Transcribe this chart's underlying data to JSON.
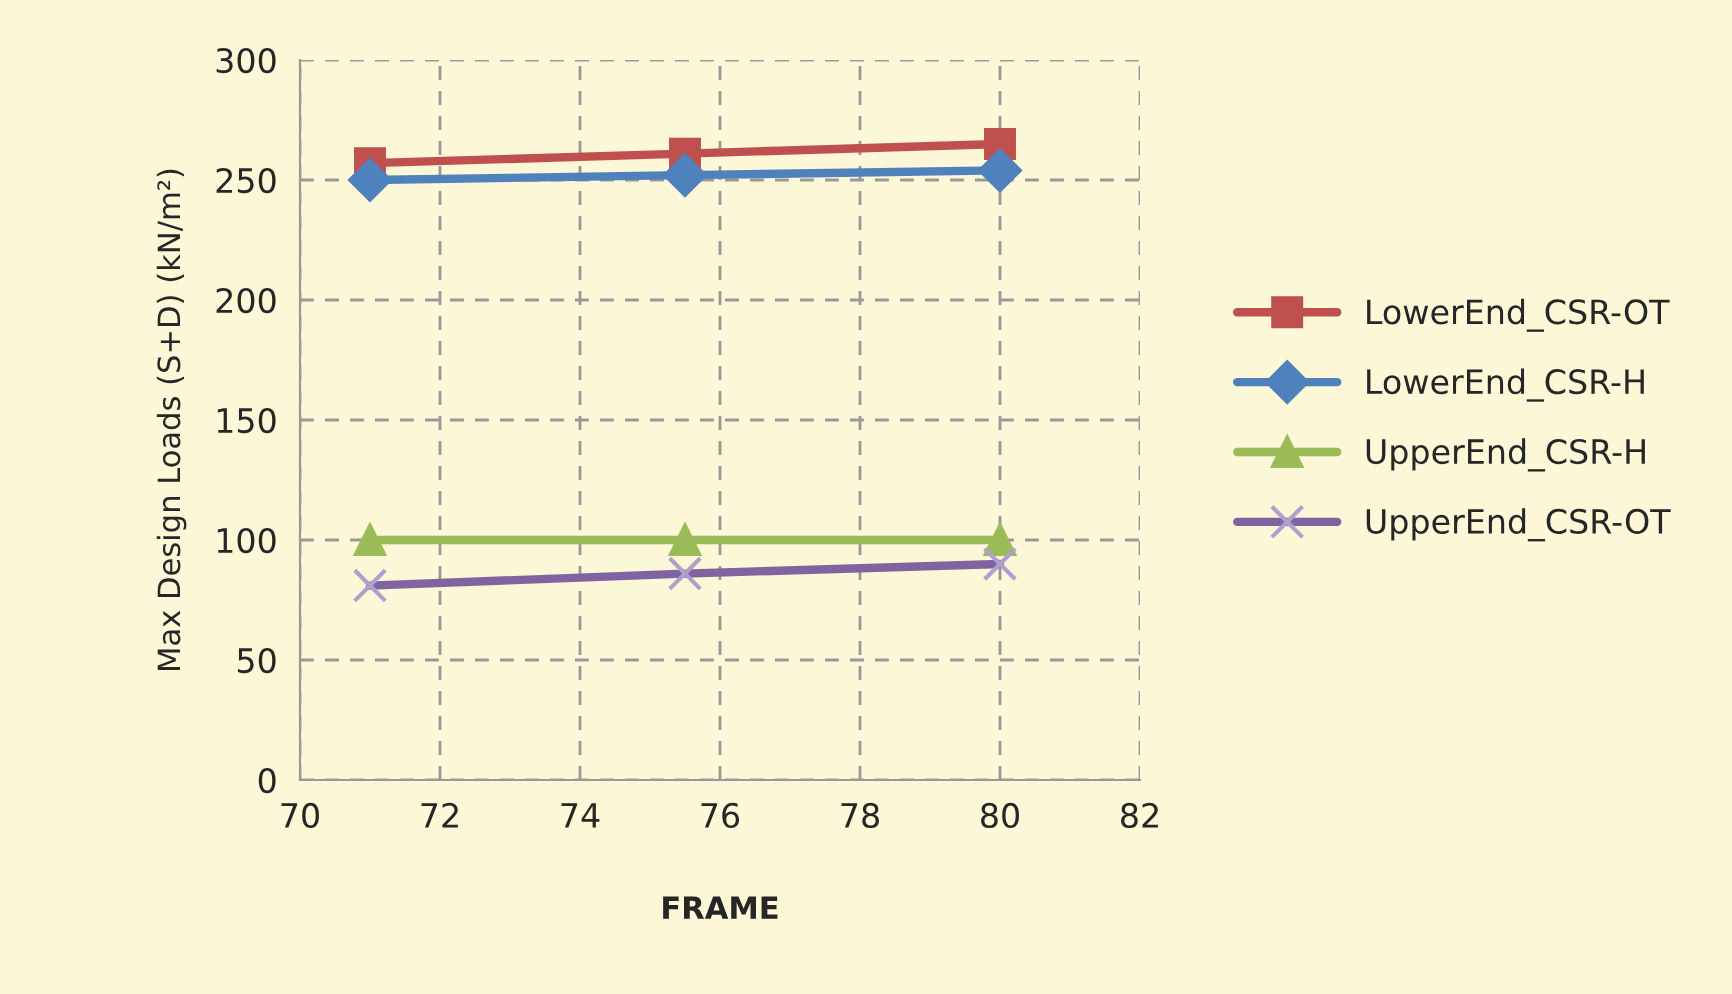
{
  "chart_data": {
    "type": "line",
    "xlabel": "FRAME",
    "ylabel": "Max Design Loads (S+D) (kN/m²)",
    "x": [
      71,
      75.5,
      80
    ],
    "series": [
      {
        "name": "LowerEnd_CSR-OT",
        "color": "#c0504d",
        "marker": "square",
        "values": [
          257,
          261,
          265
        ]
      },
      {
        "name": "LowerEnd_CSR-H",
        "color": "#4f81bd",
        "marker": "diamond",
        "values": [
          250,
          252,
          254
        ]
      },
      {
        "name": "UpperEnd_CSR-H",
        "color": "#9bbb59",
        "marker": "triangle",
        "values": [
          100,
          100,
          100
        ]
      },
      {
        "name": "UpperEnd_CSR-OT",
        "color": "#8064a2",
        "marker": "cross",
        "values": [
          81,
          86,
          90
        ]
      }
    ],
    "xlim": [
      70,
      82
    ],
    "xticks": [
      70,
      72,
      74,
      76,
      78,
      80,
      82
    ],
    "ylim": [
      0,
      300
    ],
    "yticks": [
      0,
      50,
      100,
      150,
      200,
      250,
      300
    ],
    "grid": true,
    "legend": "right"
  }
}
